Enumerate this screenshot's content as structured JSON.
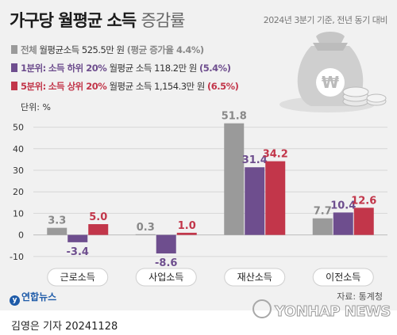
{
  "header": {
    "title_bold": "가구당 월평균 소득",
    "title_light": "증감률",
    "subtitle": "2024년 3분기 기준, 전년 동기 대비"
  },
  "legend": [
    {
      "name": "전체",
      "tag": "",
      "text": "월평균소득 525.5만 원",
      "paren": "(평균 증가율 4.4%)",
      "color": "#9a9a9a"
    },
    {
      "name": "1분위:",
      "tag": "소득 하위 20%",
      "text": "월평균 소득 118.2만 원",
      "paren": "(5.4%)",
      "color": "#6e4e8e"
    },
    {
      "name": "5분위:",
      "tag": "소득 상위 20%",
      "text": "월평균 소득 1,154.3만 원",
      "paren": "(6.5%)",
      "color": "#c2364a"
    }
  ],
  "chart_data": {
    "type": "bar",
    "unit_label": "단위: %",
    "categories": [
      "근로소득",
      "사업소득",
      "재산소득",
      "이전소득"
    ],
    "series": [
      {
        "name": "전체",
        "color": "#9a9a9a",
        "values": [
          3.3,
          0.3,
          51.8,
          7.7
        ]
      },
      {
        "name": "1분위",
        "color": "#6e4e8e",
        "values": [
          -3.4,
          -8.6,
          31.4,
          10.4
        ]
      },
      {
        "name": "5분위",
        "color": "#c2364a",
        "values": [
          5.0,
          1.0,
          34.2,
          12.6
        ]
      }
    ],
    "data_labels": [
      [
        "3.3",
        "-3.4",
        "5.0"
      ],
      [
        "0.3",
        "-8.6",
        "1.0"
      ],
      [
        "51.8",
        "31.4",
        "34.2"
      ],
      [
        "7.7",
        "10.4",
        "12.6"
      ]
    ],
    "yticks": [
      50,
      40,
      30,
      20,
      10,
      0,
      -10
    ],
    "ytick_labels": [
      "50",
      "40",
      "30",
      "20",
      "10",
      "0",
      "-10"
    ],
    "ylim": [
      -13,
      55
    ],
    "grid": true
  },
  "footer": {
    "logo": "연합뉴스",
    "source": "자료: 통계청",
    "watermark": "YONHAP NEWS",
    "byline": "김영은 기자  20241128"
  }
}
